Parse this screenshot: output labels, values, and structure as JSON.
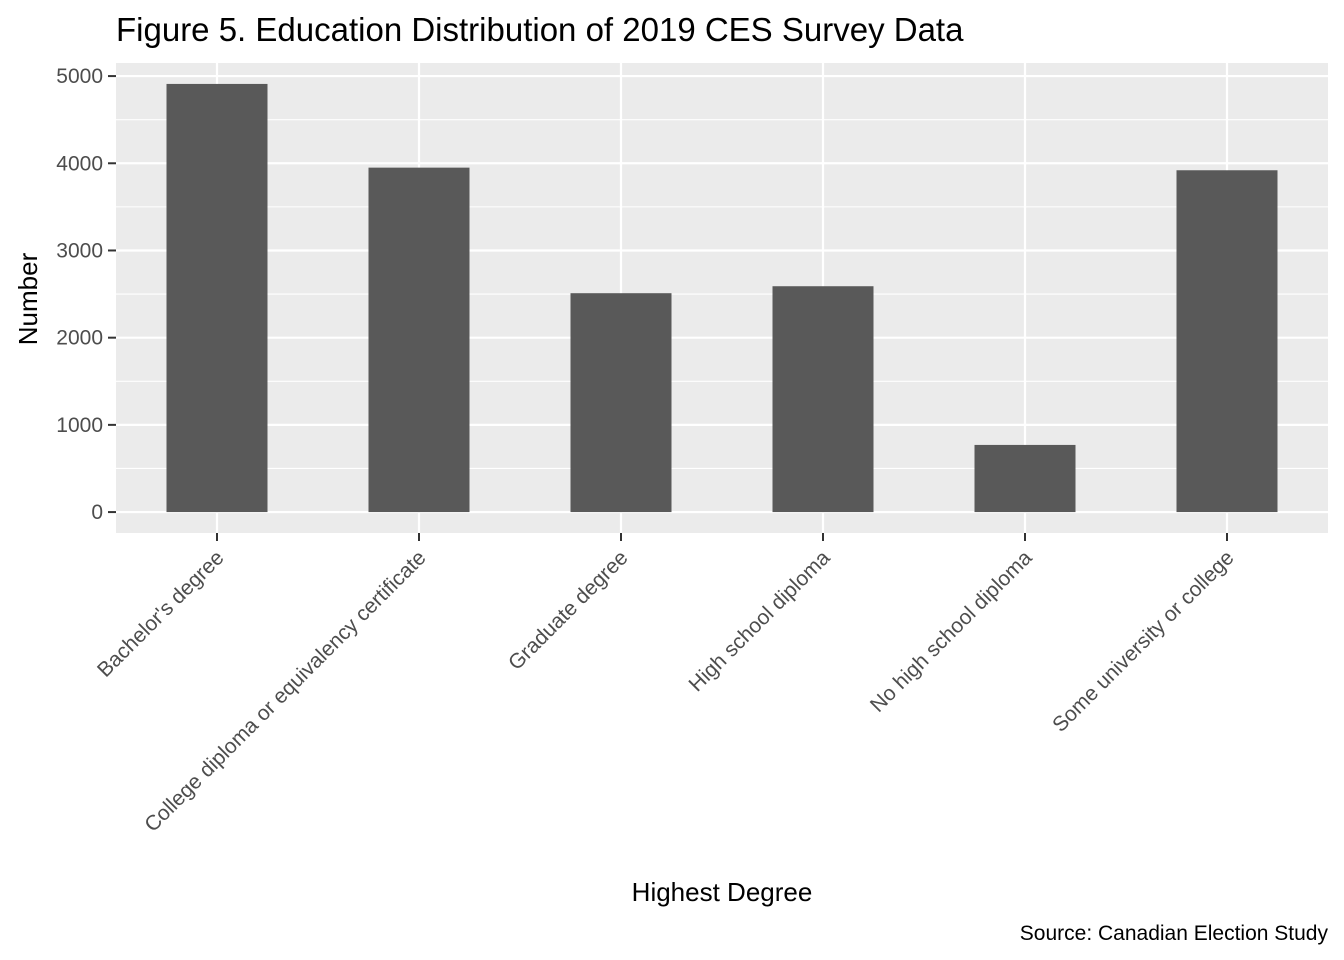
{
  "chart_data": {
    "type": "bar",
    "title": "Figure 5. Education Distribution of 2019 CES Survey Data",
    "xlabel": "Highest Degree",
    "ylabel": "Number",
    "caption": "Source: Canadian Election Study",
    "categories": [
      "Bachelor's degree",
      "College diploma or equivalency certificate",
      "Graduate degree",
      "High school diploma",
      "No high school diploma",
      "Some university or college"
    ],
    "values": [
      4910,
      3950,
      2510,
      2590,
      770,
      3920
    ],
    "ylim": [
      -240,
      5150
    ],
    "yticks": [
      0,
      1000,
      2000,
      3000,
      4000,
      5000
    ],
    "grid": true,
    "legend": "none",
    "colors": {
      "panel": "#ebebeb",
      "grid": "#ffffff",
      "bar": "#595959",
      "tick": "#333333",
      "tick_text": "#4d4d4d"
    }
  }
}
